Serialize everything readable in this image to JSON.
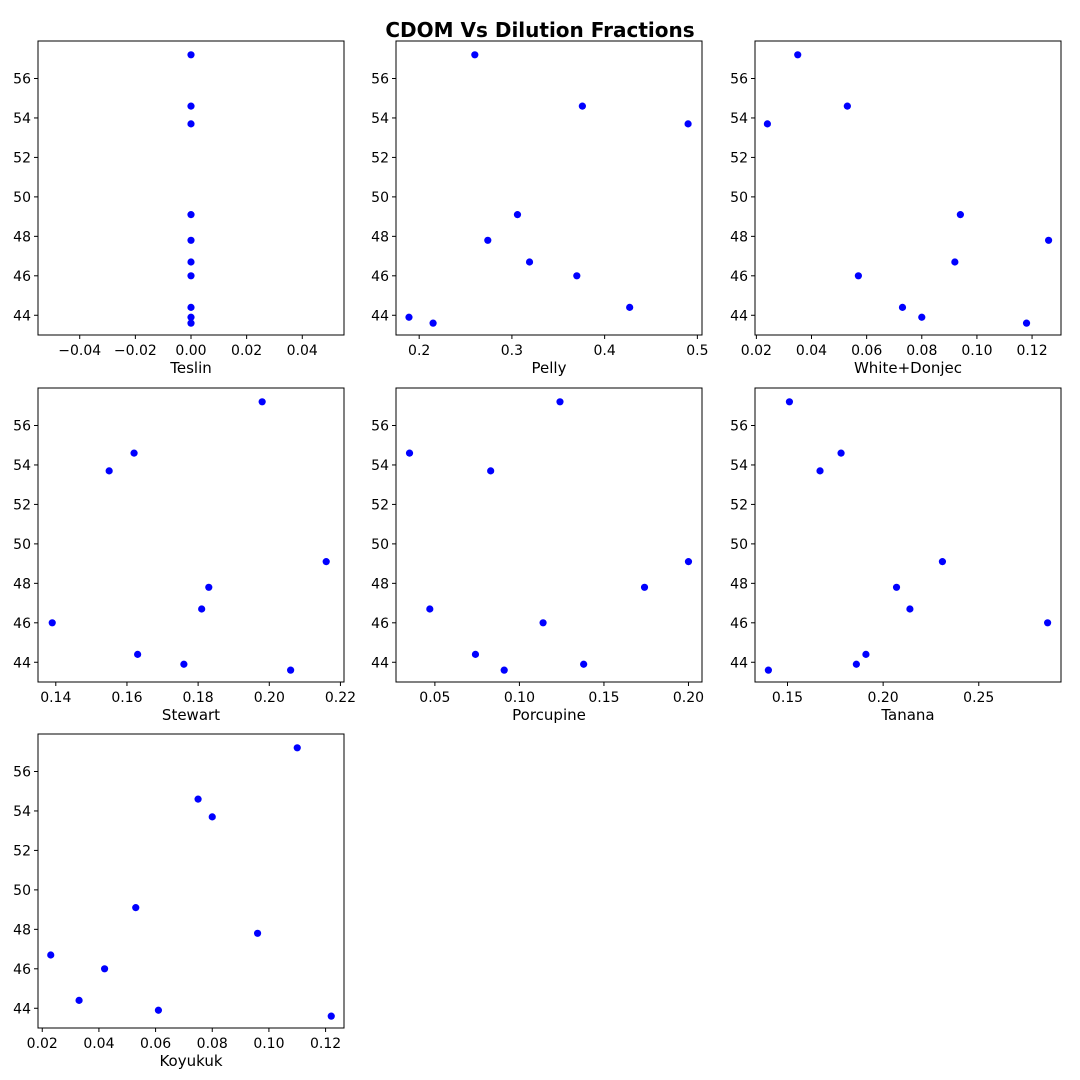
{
  "chart_data": {
    "title": "CDOM Vs Dilution Fractions",
    "type": "scatter",
    "marker_color": "#0000ff",
    "y_ticks": [
      44,
      46,
      48,
      50,
      52,
      54,
      56
    ],
    "y_tick_labels": [
      "44",
      "46",
      "48",
      "50",
      "52",
      "54",
      "56"
    ],
    "ylim": [
      43.0,
      57.9
    ],
    "panels": [
      {
        "xlabel": "Teslin",
        "xlim": [
          -0.055,
          0.055
        ],
        "x_ticks": [
          -0.04,
          -0.02,
          0.0,
          0.02,
          0.04
        ],
        "x_tick_labels": [
          "−0.04",
          "−0.02",
          "0.00",
          "0.02",
          "0.04"
        ],
        "points": [
          [
            0.0,
            57.2
          ],
          [
            0.0,
            54.6
          ],
          [
            0.0,
            53.7
          ],
          [
            0.0,
            49.1
          ],
          [
            0.0,
            47.8
          ],
          [
            0.0,
            46.7
          ],
          [
            0.0,
            46.0
          ],
          [
            0.0,
            44.4
          ],
          [
            0.0,
            43.9
          ],
          [
            0.0,
            43.6
          ]
        ]
      },
      {
        "xlabel": "Pelly",
        "xlim": [
          0.175,
          0.505
        ],
        "x_ticks": [
          0.2,
          0.3,
          0.4,
          0.5
        ],
        "x_tick_labels": [
          "0.2",
          "0.3",
          "0.4",
          "0.5"
        ],
        "points": [
          [
            0.26,
            57.2
          ],
          [
            0.376,
            54.6
          ],
          [
            0.49,
            53.7
          ],
          [
            0.306,
            49.1
          ],
          [
            0.274,
            47.8
          ],
          [
            0.319,
            46.7
          ],
          [
            0.37,
            46.0
          ],
          [
            0.427,
            44.4
          ],
          [
            0.189,
            43.9
          ],
          [
            0.215,
            43.6
          ]
        ]
      },
      {
        "xlabel": "White+Donjec",
        "xlim": [
          0.0195,
          0.1305
        ],
        "x_ticks": [
          0.02,
          0.04,
          0.06,
          0.08,
          0.1,
          0.12
        ],
        "x_tick_labels": [
          "0.02",
          "0.04",
          "0.06",
          "0.08",
          "0.10",
          "0.12"
        ],
        "points": [
          [
            0.035,
            57.2
          ],
          [
            0.053,
            54.6
          ],
          [
            0.024,
            53.7
          ],
          [
            0.094,
            49.1
          ],
          [
            0.126,
            47.8
          ],
          [
            0.092,
            46.7
          ],
          [
            0.057,
            46.0
          ],
          [
            0.073,
            44.4
          ],
          [
            0.08,
            43.9
          ],
          [
            0.118,
            43.6
          ]
        ]
      },
      {
        "xlabel": "Stewart",
        "xlim": [
          0.135,
          0.221
        ],
        "x_ticks": [
          0.14,
          0.16,
          0.18,
          0.2,
          0.22
        ],
        "x_tick_labels": [
          "0.14",
          "0.16",
          "0.18",
          "0.20",
          "0.22"
        ],
        "points": [
          [
            0.198,
            57.2
          ],
          [
            0.162,
            54.6
          ],
          [
            0.155,
            53.7
          ],
          [
            0.216,
            49.1
          ],
          [
            0.183,
            47.8
          ],
          [
            0.181,
            46.7
          ],
          [
            0.139,
            46.0
          ],
          [
            0.163,
            44.4
          ],
          [
            0.176,
            43.9
          ],
          [
            0.206,
            43.6
          ]
        ]
      },
      {
        "xlabel": "Porcupine",
        "xlim": [
          0.027,
          0.208
        ],
        "x_ticks": [
          0.05,
          0.1,
          0.15,
          0.2
        ],
        "x_tick_labels": [
          "0.05",
          "0.10",
          "0.15",
          "0.20"
        ],
        "points": [
          [
            0.124,
            57.2
          ],
          [
            0.035,
            54.6
          ],
          [
            0.083,
            53.7
          ],
          [
            0.2,
            49.1
          ],
          [
            0.174,
            47.8
          ],
          [
            0.047,
            46.7
          ],
          [
            0.114,
            46.0
          ],
          [
            0.074,
            44.4
          ],
          [
            0.138,
            43.9
          ],
          [
            0.091,
            43.6
          ]
        ]
      },
      {
        "xlabel": "Tanana",
        "xlim": [
          0.133,
          0.293
        ],
        "x_ticks": [
          0.15,
          0.2,
          0.25
        ],
        "x_tick_labels": [
          "0.15",
          "0.20",
          "0.25"
        ],
        "points": [
          [
            0.151,
            57.2
          ],
          [
            0.178,
            54.6
          ],
          [
            0.167,
            53.7
          ],
          [
            0.231,
            49.1
          ],
          [
            0.207,
            47.8
          ],
          [
            0.214,
            46.7
          ],
          [
            0.286,
            46.0
          ],
          [
            0.191,
            44.4
          ],
          [
            0.186,
            43.9
          ],
          [
            0.14,
            43.6
          ]
        ]
      },
      {
        "xlabel": "Koyukuk",
        "xlim": [
          0.0185,
          0.1265
        ],
        "x_ticks": [
          0.02,
          0.04,
          0.06,
          0.08,
          0.1,
          0.12
        ],
        "x_tick_labels": [
          "0.02",
          "0.04",
          "0.06",
          "0.08",
          "0.10",
          "0.12"
        ],
        "points": [
          [
            0.11,
            57.2
          ],
          [
            0.075,
            54.6
          ],
          [
            0.08,
            53.7
          ],
          [
            0.053,
            49.1
          ],
          [
            0.096,
            47.8
          ],
          [
            0.023,
            46.7
          ],
          [
            0.042,
            46.0
          ],
          [
            0.033,
            44.4
          ],
          [
            0.061,
            43.9
          ],
          [
            0.122,
            43.6
          ]
        ]
      }
    ]
  }
}
